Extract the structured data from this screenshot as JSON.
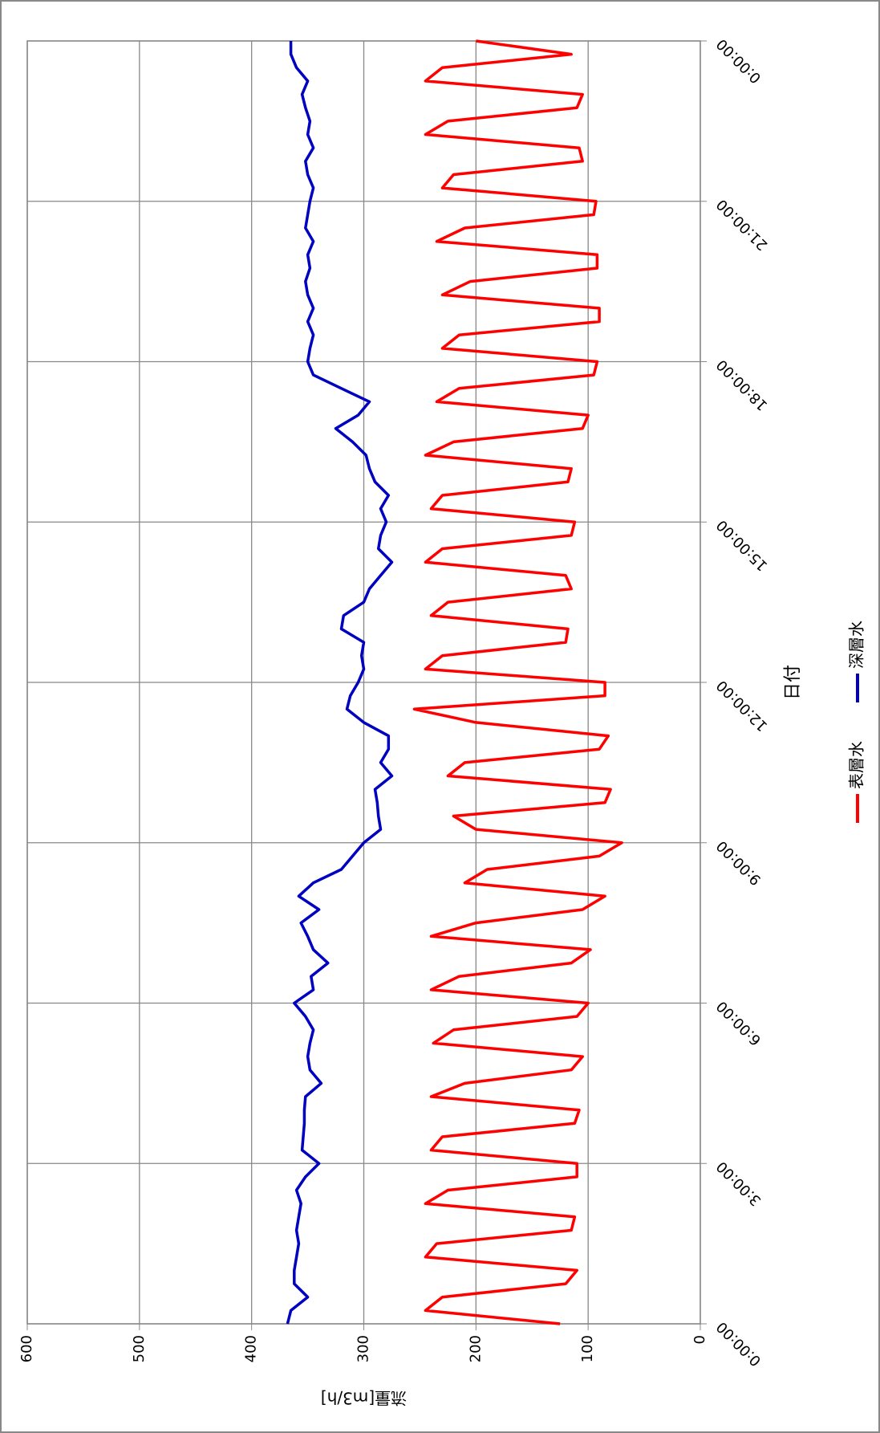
{
  "chart_data": {
    "type": "line",
    "x_label": "日付",
    "y_label": "流量[m3/h]",
    "x": [
      0,
      0.25,
      0.5,
      0.75,
      1,
      1.25,
      1.5,
      1.75,
      2,
      2.25,
      2.5,
      2.75,
      3,
      3.25,
      3.5,
      3.75,
      4,
      4.25,
      4.5,
      4.75,
      5,
      5.25,
      5.5,
      5.75,
      6,
      6.25,
      6.5,
      6.75,
      7,
      7.25,
      7.5,
      7.75,
      8,
      8.25,
      8.5,
      8.75,
      9,
      9.25,
      9.5,
      9.75,
      10,
      10.25,
      10.5,
      10.75,
      11,
      11.25,
      11.5,
      11.75,
      12,
      12.25,
      12.5,
      12.75,
      13,
      13.25,
      13.5,
      13.75,
      14,
      14.25,
      14.5,
      14.75,
      15,
      15.25,
      15.5,
      15.75,
      16,
      16.25,
      16.5,
      16.75,
      17,
      17.25,
      17.5,
      17.75,
      18,
      18.25,
      18.5,
      18.75,
      19,
      19.25,
      19.5,
      19.75,
      20,
      20.25,
      20.5,
      20.75,
      21,
      21.25,
      21.5,
      21.75,
      22,
      22.25,
      22.5,
      22.75,
      23,
      23.25,
      23.5,
      23.75,
      24
    ],
    "series": [
      {
        "name": "表層水",
        "color": "#ff0000",
        "values": [
          125,
          245,
          230,
          120,
          110,
          245,
          235,
          115,
          112,
          245,
          225,
          110,
          110,
          240,
          230,
          112,
          108,
          240,
          210,
          115,
          105,
          238,
          220,
          110,
          100,
          240,
          215,
          115,
          98,
          240,
          200,
          105,
          85,
          210,
          190,
          90,
          70,
          200,
          220,
          85,
          80,
          225,
          210,
          90,
          82,
          200,
          255,
          85,
          85,
          245,
          230,
          120,
          118,
          240,
          225,
          115,
          120,
          245,
          230,
          115,
          112,
          240,
          230,
          118,
          115,
          245,
          220,
          105,
          100,
          235,
          215,
          95,
          92,
          230,
          215,
          90,
          90,
          230,
          205,
          92,
          92,
          235,
          210,
          95,
          93,
          230,
          220,
          105,
          108,
          245,
          225,
          110,
          105,
          245,
          230,
          115,
          200
        ]
      },
      {
        "name": "深層水",
        "color": "#0000c0",
        "values": [
          368,
          365,
          350,
          362,
          362,
          360,
          358,
          360,
          358,
          356,
          360,
          352,
          340,
          355,
          354,
          353,
          353,
          352,
          338,
          348,
          350,
          348,
          345,
          352,
          362,
          345,
          347,
          332,
          345,
          350,
          356,
          340,
          358,
          345,
          320,
          310,
          300,
          285,
          287,
          288,
          290,
          275,
          285,
          278,
          278,
          300,
          315,
          312,
          305,
          300,
          302,
          300,
          320,
          318,
          300,
          295,
          285,
          275,
          287,
          285,
          280,
          285,
          278,
          290,
          295,
          298,
          310,
          325,
          305,
          295,
          320,
          345,
          350,
          348,
          345,
          350,
          345,
          350,
          352,
          348,
          350,
          345,
          352,
          350,
          348,
          345,
          350,
          352,
          345,
          350,
          348,
          352,
          355,
          350,
          360,
          365,
          365
        ]
      }
    ],
    "xlim": [
      0,
      24
    ],
    "xticks": [
      {
        "value": 0,
        "label": "0:00:00"
      },
      {
        "value": 3,
        "label": "3:00:00"
      },
      {
        "value": 6,
        "label": "6:00:00"
      },
      {
        "value": 9,
        "label": "9:00:00"
      },
      {
        "value": 12,
        "label": "12:00:00"
      },
      {
        "value": 15,
        "label": "15:00:00"
      },
      {
        "value": 18,
        "label": "18:00:00"
      },
      {
        "value": 21,
        "label": "21:00:00"
      },
      {
        "value": 24,
        "label": "0:00:00"
      }
    ],
    "ylim": [
      0,
      600
    ],
    "yticks": [
      0,
      100,
      200,
      300,
      400,
      500,
      600
    ],
    "grid": true,
    "legend": "bottom"
  }
}
